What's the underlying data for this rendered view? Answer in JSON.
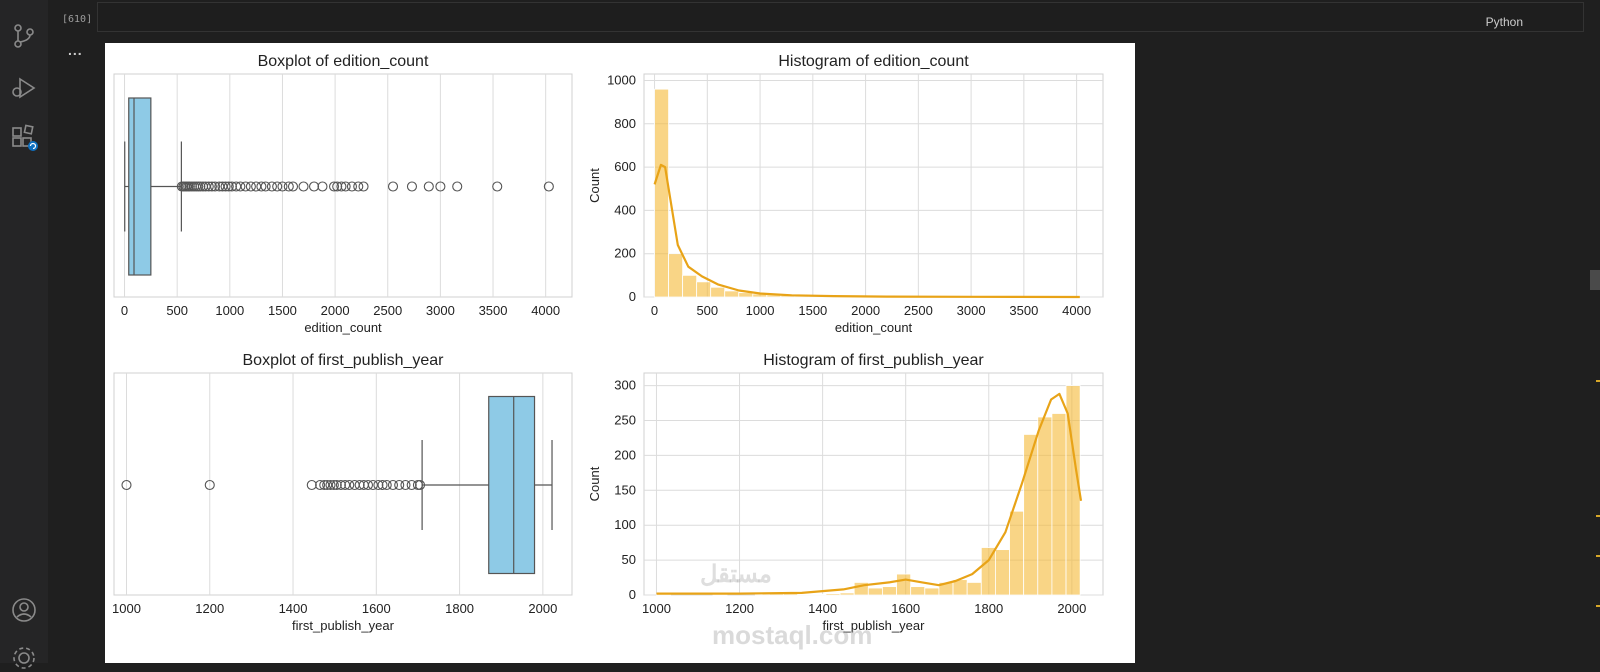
{
  "cell": {
    "exec_count": "[610]",
    "kernel": "Python",
    "output_marker": "..."
  },
  "activity": [
    "source-control-icon",
    "run-debug-icon",
    "extensions-icon",
    "account-icon",
    "settings-gear-icon"
  ],
  "watermark": {
    "arabic": "مستقل",
    "latin": "mostaql.com"
  },
  "chart_data": [
    {
      "type": "box",
      "title": "Boxplot of edition_count",
      "xlabel": "edition_count",
      "xlim": [
        -100,
        4250
      ],
      "xticks": [
        0,
        500,
        1000,
        1500,
        2000,
        2500,
        3000,
        3500,
        4000
      ],
      "box": {
        "whisker_low": 2,
        "q1": 40,
        "median": 90,
        "q3": 250,
        "whisker_high": 540
      },
      "outliers": [
        545,
        560,
        575,
        590,
        605,
        620,
        640,
        660,
        680,
        700,
        720,
        745,
        770,
        800,
        830,
        860,
        900,
        930,
        960,
        990,
        1020,
        1060,
        1100,
        1150,
        1200,
        1250,
        1300,
        1340,
        1400,
        1450,
        1500,
        1560,
        1600,
        1700,
        1800,
        1880,
        1990,
        2020,
        2060,
        2100,
        2160,
        2220,
        2270,
        2550,
        2730,
        2890,
        3000,
        3160,
        3540,
        4030
      ],
      "color": "#8ecae6"
    },
    {
      "type": "histogram",
      "title": "Histogram of edition_count",
      "xlabel": "edition_count",
      "ylabel": "Count",
      "xlim": [
        -100,
        4250
      ],
      "ylim": [
        0,
        1030
      ],
      "xticks": [
        0,
        500,
        1000,
        1500,
        2000,
        2500,
        3000,
        3500,
        4000
      ],
      "yticks": [
        0,
        200,
        400,
        600,
        800,
        1000
      ],
      "bin_start": 0,
      "bin_width": 133,
      "counts": [
        960,
        200,
        100,
        70,
        45,
        28,
        20,
        14,
        10,
        8,
        6,
        5,
        4,
        3,
        3,
        2,
        2,
        2,
        1,
        1,
        1,
        1,
        1,
        1,
        1,
        1,
        1,
        1,
        1,
        1
      ],
      "kde": [
        [
          0,
          520
        ],
        [
          60,
          610
        ],
        [
          100,
          600
        ],
        [
          150,
          450
        ],
        [
          220,
          240
        ],
        [
          320,
          140
        ],
        [
          450,
          95
        ],
        [
          600,
          58
        ],
        [
          800,
          30
        ],
        [
          1000,
          16
        ],
        [
          1300,
          8
        ],
        [
          1700,
          4
        ],
        [
          2200,
          2
        ],
        [
          3000,
          1
        ],
        [
          4030,
          0
        ]
      ],
      "color": "#f5b935",
      "line_color": "#e8a317"
    },
    {
      "type": "box",
      "title": "Boxplot of first_publish_year",
      "xlabel": "first_publish_year",
      "xlim": [
        970,
        2070
      ],
      "xticks": [
        1000,
        1200,
        1400,
        1600,
        1800,
        2000
      ],
      "box": {
        "whisker_low": 1710,
        "q1": 1870,
        "median": 1930,
        "q3": 1980,
        "whisker_high": 2022
      },
      "outliers": [
        1000,
        1200,
        1445,
        1465,
        1475,
        1482,
        1490,
        1498,
        1505,
        1515,
        1525,
        1535,
        1548,
        1560,
        1570,
        1580,
        1592,
        1605,
        1615,
        1625,
        1640,
        1655,
        1670,
        1685,
        1700,
        1705
      ],
      "color": "#8ecae6"
    },
    {
      "type": "histogram",
      "title": "Histogram of first_publish_year",
      "xlabel": "first_publish_year",
      "ylabel": "Count",
      "xlim": [
        970,
        2075
      ],
      "ylim": [
        0,
        318
      ],
      "xticks": [
        1000,
        1200,
        1400,
        1600,
        1800,
        2000
      ],
      "yticks": [
        0,
        50,
        100,
        150,
        200,
        250,
        300
      ],
      "bin_start": 1000,
      "bin_width": 34,
      "counts": [
        1,
        0,
        0,
        0,
        1,
        0,
        0,
        1,
        2,
        2,
        1,
        1,
        2,
        3,
        18,
        10,
        12,
        30,
        12,
        10,
        18,
        22,
        18,
        68,
        65,
        120,
        230,
        255,
        260,
        300
      ],
      "kde": [
        [
          1000,
          2
        ],
        [
          1200,
          2
        ],
        [
          1350,
          3
        ],
        [
          1450,
          8
        ],
        [
          1500,
          14
        ],
        [
          1560,
          18
        ],
        [
          1600,
          22
        ],
        [
          1640,
          18
        ],
        [
          1680,
          14
        ],
        [
          1720,
          20
        ],
        [
          1760,
          30
        ],
        [
          1800,
          50
        ],
        [
          1840,
          90
        ],
        [
          1880,
          160
        ],
        [
          1920,
          235
        ],
        [
          1950,
          280
        ],
        [
          1970,
          288
        ],
        [
          1990,
          260
        ],
        [
          2010,
          180
        ],
        [
          2022,
          135
        ]
      ],
      "color": "#f5b935",
      "line_color": "#e8a317"
    }
  ]
}
